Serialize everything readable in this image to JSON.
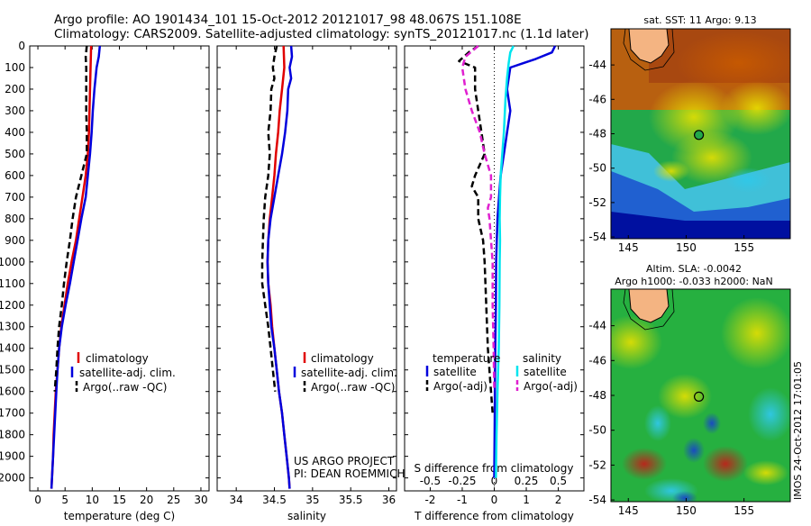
{
  "header": {
    "line1": "Argo profile: AO 1901434_101 15-Oct-2012 20121017_98 48.067S 151.108E",
    "line2": "Climatology: CARS2009. Satellite-adjusted climatology: synTS_20121017.nc (1.1d later)"
  },
  "credits": {
    "project": "US ARGO PROJECT",
    "pi": "PI: DEAN ROEMMICH",
    "imos_stamp": "IMOS 24-Oct-2012 17:01:05"
  },
  "colors": {
    "climatology": "#e00000",
    "satellite": "#0000dd",
    "argo": "#000000",
    "salinity_satellite": "#00e5ee",
    "salinity_argo": "#e020d0"
  },
  "depth_axis": {
    "ylim": [
      0,
      2060
    ],
    "ticks": [
      0,
      100,
      200,
      300,
      400,
      500,
      600,
      700,
      800,
      900,
      1000,
      1100,
      1200,
      1300,
      1400,
      1500,
      1600,
      1700,
      1800,
      1900,
      2000
    ],
    "inverted": true
  },
  "chart_data": [
    {
      "id": "temperature",
      "type": "line",
      "xlabel": "temperature (deg C)",
      "xlim": [
        -1.5,
        31.5
      ],
      "xticks": [
        0,
        5,
        10,
        15,
        20,
        25,
        30
      ],
      "legend": [
        "climatology",
        "satellite-adj. clim.",
        "Argo(..raw -QC)"
      ],
      "series": [
        {
          "key": "climatology",
          "style": "solid",
          "points": [
            [
              9.8,
              0
            ],
            [
              9.7,
              100
            ],
            [
              9.6,
              200
            ],
            [
              9.5,
              300
            ],
            [
              9.4,
              400
            ],
            [
              9.2,
              500
            ],
            [
              8.8,
              600
            ],
            [
              8.2,
              700
            ],
            [
              7.6,
              800
            ],
            [
              7.0,
              900
            ],
            [
              6.2,
              1000
            ],
            [
              5.5,
              1100
            ],
            [
              4.9,
              1200
            ],
            [
              4.3,
              1300
            ],
            [
              3.9,
              1400
            ],
            [
              3.6,
              1500
            ],
            [
              3.3,
              1600
            ],
            [
              3.1,
              1700
            ],
            [
              2.9,
              1800
            ],
            [
              2.8,
              1900
            ],
            [
              2.6,
              2000
            ],
            [
              2.5,
              2050
            ]
          ]
        },
        {
          "key": "satellite",
          "style": "solid",
          "points": [
            [
              11.4,
              0
            ],
            [
              11.2,
              50
            ],
            [
              10.8,
              100
            ],
            [
              10.4,
              200
            ],
            [
              10.1,
              300
            ],
            [
              9.9,
              400
            ],
            [
              9.6,
              500
            ],
            [
              9.2,
              600
            ],
            [
              8.8,
              700
            ],
            [
              8.0,
              800
            ],
            [
              7.3,
              900
            ],
            [
              6.6,
              1000
            ],
            [
              5.9,
              1100
            ],
            [
              5.1,
              1200
            ],
            [
              4.4,
              1300
            ],
            [
              3.9,
              1400
            ],
            [
              3.6,
              1500
            ],
            [
              3.4,
              1600
            ],
            [
              3.2,
              1700
            ],
            [
              3.0,
              1800
            ],
            [
              2.8,
              1900
            ],
            [
              2.6,
              2000
            ],
            [
              2.5,
              2050
            ]
          ]
        },
        {
          "key": "argo",
          "style": "dashed",
          "points": [
            [
              9.0,
              0
            ],
            [
              8.8,
              50
            ],
            [
              8.9,
              100
            ],
            [
              8.9,
              200
            ],
            [
              8.9,
              300
            ],
            [
              9.0,
              400
            ],
            [
              9.0,
              500
            ],
            [
              8.0,
              600
            ],
            [
              7.0,
              700
            ],
            [
              6.4,
              800
            ],
            [
              5.9,
              900
            ],
            [
              5.3,
              1000
            ],
            [
              4.8,
              1100
            ],
            [
              4.4,
              1200
            ],
            [
              3.9,
              1300
            ],
            [
              3.6,
              1400
            ],
            [
              3.4,
              1500
            ],
            [
              3.1,
              1600
            ]
          ]
        }
      ]
    },
    {
      "id": "salinity",
      "type": "line",
      "xlabel": "salinity",
      "xlim": [
        33.75,
        36.1
      ],
      "xticks": [
        34,
        34.5,
        35,
        35.5,
        36
      ],
      "xticklabels": [
        "34",
        "34.5",
        "35",
        "35.5",
        "36"
      ],
      "legend": [
        "climatology",
        "satellite-adj. clim.",
        "Argo(..raw -QC)"
      ],
      "series": [
        {
          "key": "climatology",
          "style": "solid",
          "points": [
            [
              34.62,
              0
            ],
            [
              34.63,
              100
            ],
            [
              34.6,
              200
            ],
            [
              34.57,
              300
            ],
            [
              34.55,
              400
            ],
            [
              34.52,
              500
            ],
            [
              34.5,
              600
            ],
            [
              34.47,
              700
            ],
            [
              34.44,
              800
            ],
            [
              34.42,
              900
            ],
            [
              34.41,
              1000
            ],
            [
              34.42,
              1100
            ],
            [
              34.45,
              1200
            ],
            [
              34.47,
              1300
            ],
            [
              34.5,
              1400
            ],
            [
              34.53,
              1500
            ],
            [
              34.56,
              1600
            ],
            [
              34.6,
              1700
            ],
            [
              34.63,
              1800
            ],
            [
              34.66,
              1900
            ],
            [
              34.69,
              2000
            ],
            [
              34.7,
              2050
            ]
          ]
        },
        {
          "key": "satellite",
          "style": "solid",
          "points": [
            [
              34.72,
              0
            ],
            [
              34.73,
              50
            ],
            [
              34.7,
              100
            ],
            [
              34.72,
              150
            ],
            [
              34.68,
              200
            ],
            [
              34.67,
              300
            ],
            [
              34.64,
              400
            ],
            [
              34.6,
              500
            ],
            [
              34.55,
              600
            ],
            [
              34.5,
              700
            ],
            [
              34.45,
              800
            ],
            [
              34.42,
              900
            ],
            [
              34.41,
              1000
            ],
            [
              34.42,
              1100
            ],
            [
              34.44,
              1200
            ],
            [
              34.46,
              1300
            ],
            [
              34.5,
              1400
            ],
            [
              34.53,
              1500
            ],
            [
              34.56,
              1600
            ],
            [
              34.6,
              1700
            ],
            [
              34.63,
              1800
            ],
            [
              34.66,
              1900
            ],
            [
              34.69,
              2000
            ],
            [
              34.7,
              2050
            ]
          ]
        },
        {
          "key": "argo",
          "style": "dashed",
          "points": [
            [
              34.53,
              0
            ],
            [
              34.5,
              50
            ],
            [
              34.48,
              100
            ],
            [
              34.5,
              150
            ],
            [
              34.46,
              200
            ],
            [
              34.45,
              300
            ],
            [
              34.42,
              400
            ],
            [
              34.44,
              500
            ],
            [
              34.42,
              600
            ],
            [
              34.38,
              700
            ],
            [
              34.36,
              800
            ],
            [
              34.35,
              900
            ],
            [
              34.34,
              1000
            ],
            [
              34.34,
              1100
            ],
            [
              34.38,
              1200
            ],
            [
              34.42,
              1300
            ],
            [
              34.45,
              1400
            ],
            [
              34.48,
              1500
            ],
            [
              34.51,
              1600
            ]
          ]
        }
      ]
    },
    {
      "id": "difference",
      "type": "line",
      "xlabel": "T difference from climatology",
      "xlabel2": "S difference from climatology",
      "xlim": [
        -2.8,
        2.8
      ],
      "xticks": [
        -2,
        -1,
        0,
        1,
        2
      ],
      "s_ticks": [
        -0.5,
        -0.25,
        0,
        0.25,
        0.5
      ],
      "s_ticklabels": [
        "-0.5",
        "-0.25",
        "0",
        "0.25",
        "0.5"
      ],
      "s_factor": 4,
      "legend_headers": [
        "temperature",
        "salinity"
      ],
      "legend": [
        "satellite",
        "Argo(-adj)",
        "satellite",
        "Argo(-adj)"
      ],
      "series": [
        {
          "key": "satellite",
          "style": "solid",
          "points": [
            [
              1.9,
              0
            ],
            [
              1.8,
              30
            ],
            [
              1.3,
              60
            ],
            [
              0.9,
              80
            ],
            [
              0.5,
              100
            ],
            [
              0.4,
              200
            ],
            [
              0.5,
              300
            ],
            [
              0.4,
              400
            ],
            [
              0.3,
              500
            ],
            [
              0.2,
              600
            ],
            [
              0.15,
              700
            ],
            [
              0.1,
              800
            ],
            [
              0.08,
              900
            ],
            [
              0.06,
              1000
            ],
            [
              0.05,
              1200
            ],
            [
              0.03,
              1400
            ],
            [
              0.02,
              1600
            ],
            [
              0.01,
              1800
            ],
            [
              0.0,
              2000
            ]
          ]
        },
        {
          "key": "salinity_satellite",
          "style": "solid",
          "points": [
            [
              0.6,
              0
            ],
            [
              0.5,
              30
            ],
            [
              0.45,
              80
            ],
            [
              0.4,
              150
            ],
            [
              0.35,
              250
            ],
            [
              0.3,
              400
            ],
            [
              0.25,
              500
            ],
            [
              0.2,
              600
            ],
            [
              0.18,
              700
            ],
            [
              0.17,
              800
            ],
            [
              0.18,
              900
            ],
            [
              0.17,
              1000
            ],
            [
              0.16,
              1200
            ],
            [
              0.14,
              1400
            ],
            [
              0.1,
              1600
            ],
            [
              0.07,
              1800
            ],
            [
              0.05,
              2000
            ]
          ]
        },
        {
          "key": "argo",
          "style": "dashed",
          "points": [
            [
              -0.5,
              0
            ],
            [
              -0.8,
              30
            ],
            [
              -1.1,
              70
            ],
            [
              -0.6,
              100
            ],
            [
              -0.6,
              200
            ],
            [
              -0.5,
              300
            ],
            [
              -0.4,
              400
            ],
            [
              -0.3,
              500
            ],
            [
              -0.6,
              600
            ],
            [
              -0.7,
              650
            ],
            [
              -0.5,
              700
            ],
            [
              -0.5,
              800
            ],
            [
              -0.35,
              900
            ],
            [
              -0.3,
              1000
            ],
            [
              -0.25,
              1200
            ],
            [
              -0.2,
              1400
            ],
            [
              -0.1,
              1600
            ],
            [
              -0.05,
              1700
            ]
          ]
        },
        {
          "key": "salinity_argo",
          "style": "dashed",
          "points": [
            [
              -0.5,
              0
            ],
            [
              -0.9,
              50
            ],
            [
              -1.0,
              100
            ],
            [
              -0.9,
              200
            ],
            [
              -0.7,
              300
            ],
            [
              -0.45,
              400
            ],
            [
              -0.3,
              500
            ],
            [
              -0.1,
              600
            ],
            [
              -0.1,
              700
            ],
            [
              -0.2,
              750
            ],
            [
              -0.15,
              800
            ],
            [
              -0.1,
              900
            ],
            [
              -0.05,
              1000
            ],
            [
              -0.05,
              1200
            ],
            [
              -0.02,
              1400
            ],
            [
              0.0,
              1600
            ]
          ]
        }
      ]
    }
  ],
  "maps": [
    {
      "id": "sst-map",
      "title": "sat. SST: 11 Argo: 9.13",
      "xticks": [
        145,
        150,
        155
      ],
      "yticks": [
        -44,
        -46,
        -48,
        -50,
        -52,
        -54
      ],
      "xlim": [
        143.5,
        159.0
      ],
      "ylim": [
        -54.1,
        -41.9
      ],
      "argo_position": [
        151.1,
        -48.07
      ]
    },
    {
      "id": "sla-map",
      "title_line1": "Altim. SLA: -0.0042",
      "title_line2": "Argo h1000: -0.033 h2000: NaN",
      "xticks": [
        145,
        150,
        155
      ],
      "yticks": [
        -44,
        -46,
        -48,
        -50,
        -52,
        -54
      ],
      "xlim": [
        143.5,
        159.0
      ],
      "ylim": [
        -54.1,
        -41.9
      ],
      "argo_position": [
        151.1,
        -48.07
      ]
    }
  ]
}
